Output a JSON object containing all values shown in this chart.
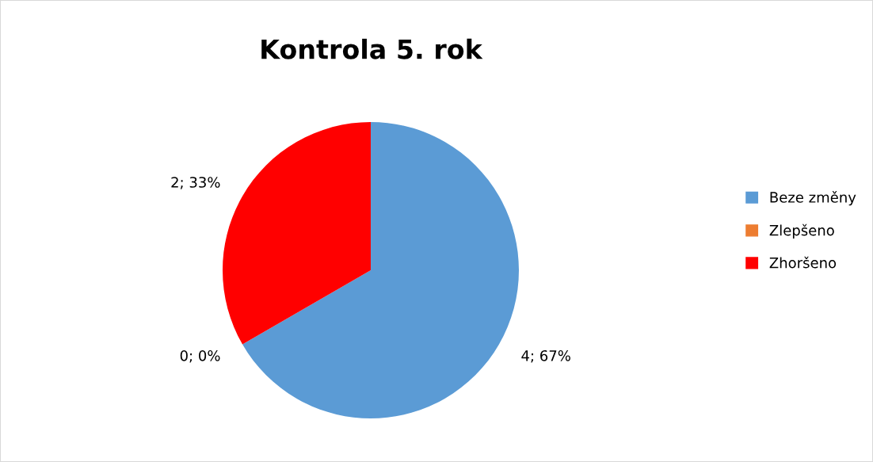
{
  "chart_data": {
    "type": "pie",
    "title": "Kontrola 5. rok",
    "categories": [
      "Beze změny",
      "Zlepšeno",
      "Zhoršeno"
    ],
    "values": [
      4,
      0,
      2
    ],
    "colors": [
      "#5b9bd5",
      "#ed7d31",
      "#ff0000"
    ],
    "value_labels": [
      "4; 67%",
      "0; 0%",
      "2; 33%"
    ],
    "legend": "right"
  }
}
